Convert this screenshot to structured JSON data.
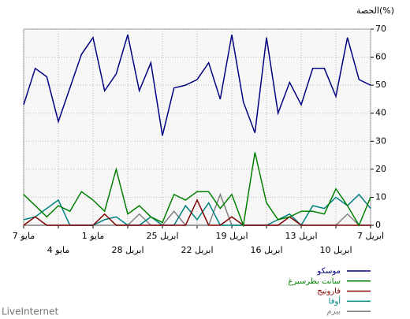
{
  "chart_data": {
    "type": "line",
    "title": "الحصة(%)",
    "categories": [
      "7 مايو",
      null,
      null,
      "4 مايو",
      null,
      null,
      "1 مايو",
      null,
      null,
      "28 ابريل",
      null,
      null,
      "25 ابريل",
      null,
      null,
      "22 ابريل",
      null,
      null,
      "19 ابريل",
      null,
      null,
      "16 ابريل",
      null,
      null,
      "13 ابريل",
      null,
      null,
      "10 ابريل",
      null,
      null,
      "7 ابريل"
    ],
    "series": [
      {
        "name": "موسكو",
        "color": "#000080",
        "values": [
          43,
          56,
          53,
          37,
          49,
          61,
          67,
          48,
          54,
          68,
          48,
          58,
          32,
          49,
          50,
          52,
          58,
          45,
          68,
          44,
          33,
          67,
          40,
          51,
          43,
          56,
          56,
          46,
          67,
          52,
          50
        ]
      },
      {
        "name": "سانت بطرسبرغ",
        "color": "#008000",
        "values": [
          11,
          7,
          3,
          7,
          5,
          12,
          9,
          5,
          20,
          4,
          7,
          3,
          1,
          11,
          9,
          12,
          12,
          6,
          11,
          0,
          26,
          8,
          2,
          3,
          5,
          5,
          4,
          13,
          7,
          0,
          10
        ]
      },
      {
        "name": "فارونيج",
        "color": "#800000",
        "values": [
          0,
          3,
          0,
          0,
          0,
          0,
          0,
          4,
          0,
          0,
          0,
          0,
          0,
          0,
          0,
          9,
          0,
          0,
          3,
          0,
          0,
          0,
          0,
          3,
          0,
          0,
          0,
          0,
          0,
          0,
          0
        ]
      },
      {
        "name": "أوفا",
        "color": "#008080",
        "values": [
          2,
          3,
          6,
          9,
          0,
          0,
          0,
          2,
          3,
          0,
          0,
          3,
          0,
          0,
          7,
          2,
          8,
          0,
          0,
          0,
          0,
          0,
          2,
          4,
          0,
          7,
          6,
          10,
          7,
          11,
          6
        ]
      },
      {
        "name": "بيرم",
        "color": "#808080",
        "values": [
          0,
          0,
          0,
          0,
          0,
          0,
          0,
          0,
          0,
          0,
          4,
          0,
          0,
          5,
          0,
          0,
          0,
          11,
          0,
          0,
          0,
          0,
          0,
          0,
          0,
          0,
          0,
          0,
          4,
          0,
          0
        ]
      }
    ],
    "ylim": [
      0,
      70
    ],
    "yticks": [
      0,
      10,
      20,
      30,
      40,
      50,
      60,
      70
    ],
    "grid": true,
    "footer": "LiveInternet"
  }
}
